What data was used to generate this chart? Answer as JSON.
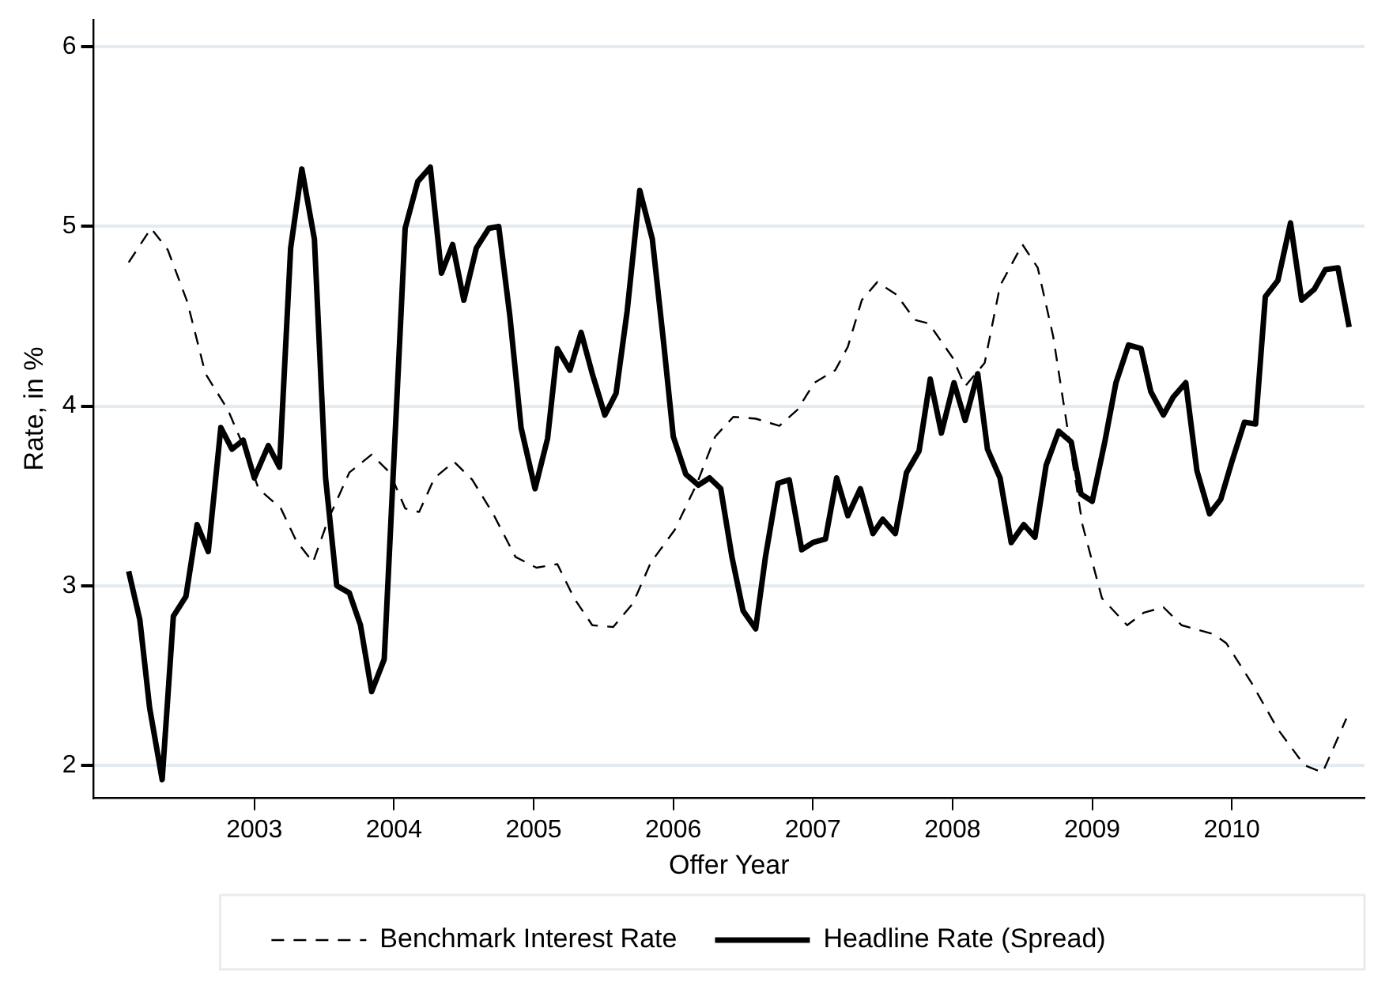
{
  "chart_data": {
    "type": "line",
    "xlabel": "Offer Year",
    "ylabel": "Rate, in %",
    "xlim": [
      2001.85,
      2010.95
    ],
    "ylim": [
      1.82,
      6.15
    ],
    "xticks": [
      2003,
      2004,
      2005,
      2006,
      2007,
      2008,
      2009,
      2010
    ],
    "yticks": [
      2,
      3,
      4,
      5,
      6
    ],
    "grid": "y",
    "legend": "bottom",
    "marker": "none",
    "series": [
      {
        "name": "Benchmark Interest Rate",
        "color": "#000000",
        "line_style": "dashed",
        "x": [
          2002.1,
          2002.26,
          2002.38,
          2002.52,
          2002.65,
          2002.81,
          2002.92,
          2003.03,
          2003.19,
          2003.3,
          2003.42,
          2003.53,
          2003.68,
          2003.84,
          2003.97,
          2004.08,
          2004.18,
          2004.29,
          2004.43,
          2004.56,
          2004.71,
          2004.87,
          2005.02,
          2005.17,
          2005.29,
          2005.42,
          2005.57,
          2005.71,
          2005.84,
          2006.01,
          2006.17,
          2006.3,
          2006.43,
          2006.59,
          2006.76,
          2006.89,
          2007.01,
          2007.16,
          2007.25,
          2007.35,
          2007.46,
          2007.6,
          2007.73,
          2007.83,
          2008.0,
          2008.09,
          2008.23,
          2008.34,
          2008.5,
          2008.61,
          2008.72,
          2008.82,
          2008.93,
          2009.07,
          2009.25,
          2009.37,
          2009.51,
          2009.64,
          2009.87,
          2009.96,
          2010.14,
          2010.33,
          2010.52,
          2010.65,
          2010.82
        ],
        "values": [
          4.8,
          4.99,
          4.87,
          4.58,
          4.18,
          3.98,
          3.78,
          3.54,
          3.43,
          3.25,
          3.13,
          3.37,
          3.63,
          3.73,
          3.63,
          3.43,
          3.41,
          3.6,
          3.69,
          3.59,
          3.4,
          3.16,
          3.1,
          3.12,
          2.93,
          2.78,
          2.77,
          2.9,
          3.13,
          3.31,
          3.57,
          3.83,
          3.94,
          3.93,
          3.89,
          3.98,
          4.13,
          4.2,
          4.33,
          4.59,
          4.69,
          4.62,
          4.48,
          4.46,
          4.27,
          4.11,
          4.24,
          4.67,
          4.9,
          4.77,
          4.39,
          3.89,
          3.34,
          2.93,
          2.78,
          2.85,
          2.88,
          2.78,
          2.73,
          2.68,
          2.46,
          2.2,
          2.0,
          1.96,
          2.26
        ]
      },
      {
        "name": "Headline Rate (Spread)",
        "color": "#000000",
        "line_style": "solid",
        "x": [
          2002.1,
          2002.18,
          2002.25,
          2002.34,
          2002.42,
          2002.51,
          2002.59,
          2002.67,
          2002.76,
          2002.84,
          2002.92,
          2003.0,
          2003.1,
          2003.18,
          2003.26,
          2003.34,
          2003.43,
          2003.51,
          2003.59,
          2003.68,
          2003.76,
          2003.84,
          2003.93,
          2004.08,
          2004.17,
          2004.26,
          2004.34,
          2004.42,
          2004.5,
          2004.59,
          2004.68,
          2004.75,
          2004.83,
          2004.91,
          2005.01,
          2005.1,
          2005.17,
          2005.26,
          2005.34,
          2005.42,
          2005.51,
          2005.59,
          2005.67,
          2005.76,
          2005.85,
          2005.93,
          2006.0,
          2006.09,
          2006.18,
          2006.26,
          2006.34,
          2006.42,
          2006.5,
          2006.59,
          2006.66,
          2006.75,
          2006.83,
          2006.92,
          2007.0,
          2007.09,
          2007.17,
          2007.25,
          2007.34,
          2007.43,
          2007.5,
          2007.59,
          2007.67,
          2007.76,
          2007.84,
          2007.92,
          2008.01,
          2008.09,
          2008.18,
          2008.25,
          2008.34,
          2008.42,
          2008.51,
          2008.59,
          2008.67,
          2008.76,
          2008.85,
          2008.92,
          2009.0,
          2009.09,
          2009.17,
          2009.26,
          2009.35,
          2009.42,
          2009.51,
          2009.58,
          2009.67,
          2009.75,
          2009.84,
          2009.92,
          2010.0,
          2010.09,
          2010.17,
          2010.24,
          2010.33,
          2010.42,
          2010.5,
          2010.59,
          2010.67,
          2010.76,
          2010.84
        ],
        "values": [
          3.08,
          2.81,
          2.32,
          1.92,
          2.83,
          2.94,
          3.34,
          3.19,
          3.88,
          3.76,
          3.81,
          3.6,
          3.78,
          3.66,
          4.88,
          5.32,
          4.93,
          3.6,
          3.0,
          2.96,
          2.78,
          2.41,
          2.59,
          4.99,
          5.25,
          5.33,
          4.74,
          4.9,
          4.59,
          4.88,
          4.99,
          5.0,
          4.5,
          3.88,
          3.54,
          3.82,
          4.32,
          4.2,
          4.41,
          4.18,
          3.95,
          4.07,
          4.53,
          5.2,
          4.93,
          4.36,
          3.83,
          3.62,
          3.56,
          3.6,
          3.54,
          3.16,
          2.86,
          2.76,
          3.16,
          3.57,
          3.59,
          3.2,
          3.24,
          3.26,
          3.6,
          3.39,
          3.54,
          3.29,
          3.37,
          3.29,
          3.63,
          3.75,
          4.15,
          3.85,
          4.13,
          3.92,
          4.18,
          3.76,
          3.6,
          3.24,
          3.34,
          3.27,
          3.67,
          3.86,
          3.8,
          3.51,
          3.47,
          3.8,
          4.13,
          4.34,
          4.32,
          4.08,
          3.95,
          4.05,
          4.13,
          3.64,
          3.4,
          3.48,
          3.69,
          3.91,
          3.9,
          4.61,
          4.7,
          5.02,
          4.59,
          4.65,
          4.76,
          4.77,
          4.44
        ]
      }
    ]
  }
}
